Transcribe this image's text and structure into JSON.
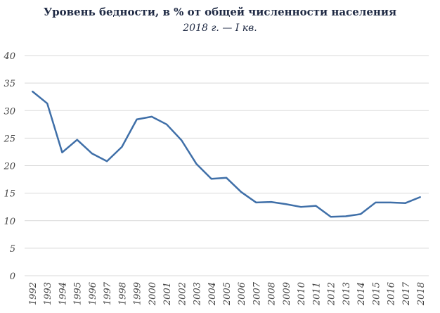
{
  "chart_data": {
    "type": "line",
    "title": "Уровень бедности, в % от общей численности населения",
    "subtitle": "2018 г. — I кв.",
    "xlabel": "",
    "ylabel": "",
    "ylim": [
      0,
      40
    ],
    "yticks": [
      0,
      5,
      10,
      15,
      20,
      25,
      30,
      35,
      40
    ],
    "grid": true,
    "legend": "none",
    "color": "#3f6fa8",
    "categories": [
      "1992",
      "1993",
      "1994",
      "1995",
      "1996",
      "1997",
      "1998",
      "1999",
      "2000",
      "2001",
      "2002",
      "2003",
      "2004",
      "2005",
      "2006",
      "2007",
      "2008",
      "2009",
      "2010",
      "2011",
      "2012",
      "2013",
      "2014",
      "2015",
      "2016",
      "2017",
      "2018"
    ],
    "series": [
      {
        "name": "Уровень бедности",
        "values": [
          33.5,
          31.3,
          22.4,
          24.7,
          22.2,
          20.8,
          23.4,
          28.4,
          28.9,
          27.5,
          24.6,
          20.3,
          17.6,
          17.8,
          15.2,
          13.3,
          13.4,
          13.0,
          12.5,
          12.7,
          10.7,
          10.8,
          11.2,
          13.3,
          13.3,
          13.2,
          14.3
        ]
      }
    ]
  }
}
